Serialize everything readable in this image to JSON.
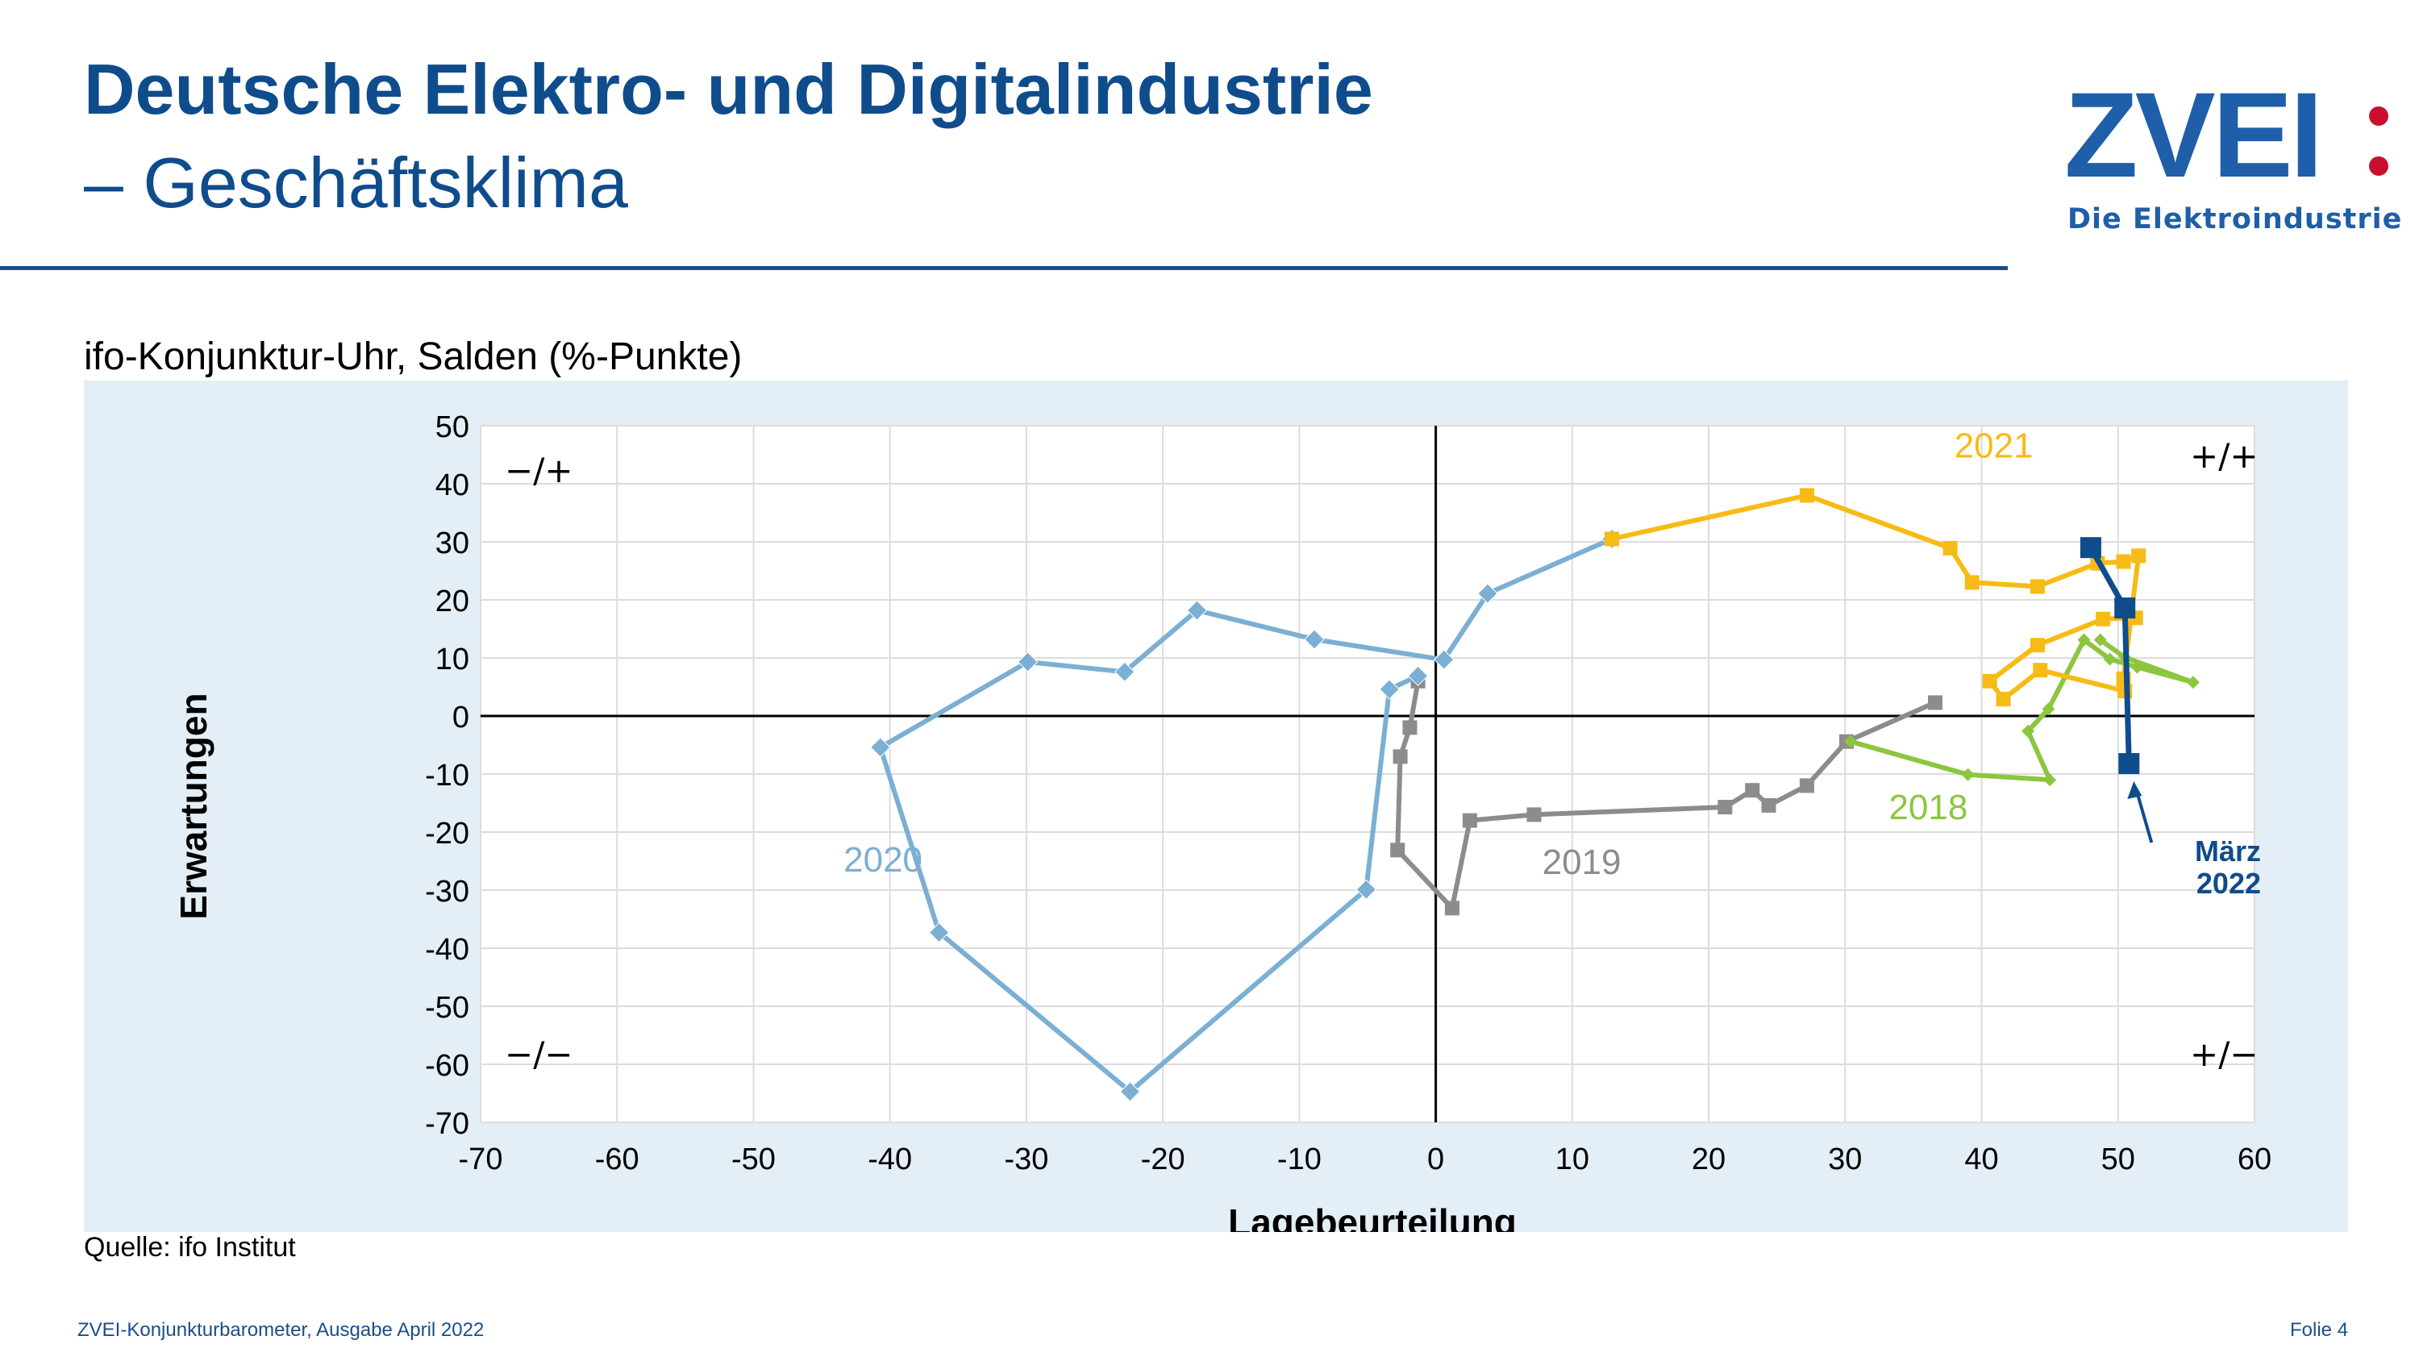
{
  "header": {
    "title_line1": "Deutsche Elektro- und Digitalindustrie",
    "title_line2": "– Geschäftsklima"
  },
  "logo": {
    "word": "ZVEI",
    "tagline": "Die Elektroindustrie"
  },
  "subtitle": "ifo-Konjunktur-Uhr, Salden (%-Punkte)",
  "source": "Quelle: ifo Institut",
  "footer": {
    "left": "ZVEI-Konjunkturbarometer, Ausgabe April 2022",
    "right": "Folie 4"
  },
  "colors": {
    "title": "#0f4c8c",
    "s2018": "#8cc63f",
    "s2019": "#8c8c8c",
    "s2020": "#7bafd4",
    "s2021": "#f7bb16",
    "s2022": "#0f4c8c"
  },
  "chart_data": {
    "type": "line",
    "xlabel": "Lagebeurteilung",
    "ylabel": "Erwartungen",
    "xlim": [
      -70,
      60
    ],
    "ylim": [
      -70,
      50
    ],
    "xticks": [
      -70,
      -60,
      -50,
      -40,
      -30,
      -20,
      -10,
      0,
      10,
      20,
      30,
      40,
      50,
      60
    ],
    "yticks": [
      50,
      40,
      30,
      20,
      10,
      0,
      -10,
      -20,
      -30,
      -40,
      -50,
      -60,
      -70
    ],
    "grid": true,
    "quadrant_labels": {
      "top_left": "−/+",
      "top_right": "+/+",
      "bottom_left": "−/−",
      "bottom_right": "+/−"
    },
    "series": [
      {
        "name": "2018",
        "color": "#8cc63f",
        "marker": "diamond-small",
        "points": [
          [
            48.7,
            13.1
          ],
          [
            50.5,
            10.1
          ],
          [
            55.5,
            5.8
          ],
          [
            51.4,
            8.4
          ],
          [
            49.4,
            9.8
          ],
          [
            47.5,
            13.1
          ],
          [
            44.9,
            1.2
          ],
          [
            43.4,
            -2.6
          ],
          [
            45.0,
            -11.0
          ],
          [
            39.0,
            -10.1
          ],
          [
            30.4,
            -4.4
          ]
        ]
      },
      {
        "name": "2019",
        "color": "#8c8c8c",
        "marker": "square",
        "points": [
          [
            36.6,
            2.3
          ],
          [
            30.1,
            -4.4
          ],
          [
            27.2,
            -12.0
          ],
          [
            24.4,
            -15.4
          ],
          [
            23.2,
            -12.8
          ],
          [
            21.2,
            -15.7
          ],
          [
            7.2,
            -17.0
          ],
          [
            2.5,
            -18.0
          ],
          [
            1.2,
            -33.1
          ],
          [
            -2.8,
            -23.1
          ],
          [
            -2.6,
            -7.0
          ],
          [
            -1.9,
            -2.0
          ],
          [
            -1.3,
            6.0
          ]
        ]
      },
      {
        "name": "2020",
        "color": "#7bafd4",
        "marker": "diamond",
        "points": [
          [
            -1.3,
            6.9
          ],
          [
            -3.4,
            4.6
          ],
          [
            -5.1,
            -29.9
          ],
          [
            -22.4,
            -64.7
          ],
          [
            -36.4,
            -37.3
          ],
          [
            -40.7,
            -5.4
          ],
          [
            -29.9,
            9.3
          ],
          [
            -22.8,
            7.6
          ],
          [
            -17.5,
            18.2
          ],
          [
            -8.9,
            13.2
          ],
          [
            0.6,
            9.7
          ],
          [
            3.8,
            21.1
          ],
          [
            12.9,
            30.5
          ]
        ]
      },
      {
        "name": "2021",
        "color": "#f7bb16",
        "marker": "square",
        "points": [
          [
            12.9,
            30.5
          ],
          [
            27.2,
            38.0
          ],
          [
            37.7,
            28.9
          ],
          [
            39.3,
            23.0
          ],
          [
            44.1,
            22.3
          ],
          [
            48.5,
            26.3
          ],
          [
            50.4,
            26.6
          ],
          [
            51.5,
            27.6
          ],
          [
            50.4,
            6.4
          ],
          [
            50.5,
            4.3
          ],
          [
            44.3,
            7.9
          ],
          [
            41.6,
            2.9
          ],
          [
            40.6,
            6.0
          ],
          [
            44.1,
            12.2
          ],
          [
            48.9,
            16.7
          ],
          [
            51.3,
            16.9
          ]
        ]
      },
      {
        "name": "März 2022",
        "label_line1": "März",
        "label_line2": "2022",
        "color": "#0f4c8c",
        "marker": "square-large",
        "points": [
          [
            48.0,
            29.0
          ],
          [
            50.5,
            18.6
          ],
          [
            50.8,
            -8.2
          ]
        ]
      }
    ],
    "annotations": [
      {
        "text": "2021",
        "series": "2021",
        "x": 38.0,
        "y": 44.5
      },
      {
        "text": "2020",
        "series": "2020",
        "x": -43.4,
        "y": -26.8
      },
      {
        "text": "2019",
        "series": "2019",
        "x": 7.8,
        "y": -27.2
      },
      {
        "text": "2018",
        "series": "2018",
        "x": 33.2,
        "y": -17.8
      }
    ]
  }
}
